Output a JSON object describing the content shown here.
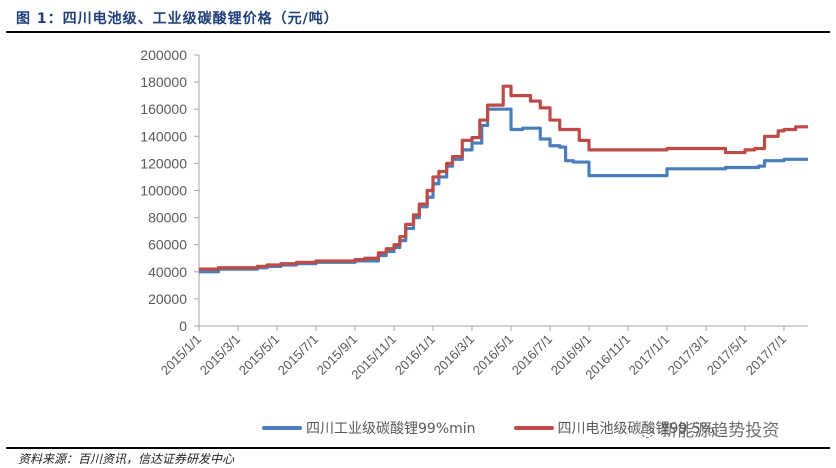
{
  "header": {
    "title": "图 1：四川电池级、工业级碳酸锂价格（元/吨）"
  },
  "footer": {
    "source": "资料来源：百川资讯，信达证券研发中心",
    "watermark": "新能源趋势投资"
  },
  "legend": {
    "items": [
      {
        "label": "四川工业级碳酸锂99%min",
        "color": "#4a7ebb"
      },
      {
        "label": "四川电池级碳酸锂99.5%",
        "color": "#be4b48"
      }
    ]
  },
  "chart_data": {
    "type": "line",
    "title": "四川电池级、工业级碳酸锂价格（元/吨）",
    "xlabel": "",
    "ylabel": "元/吨",
    "ylim": [
      0,
      200000
    ],
    "yticks": [
      0,
      20000,
      40000,
      60000,
      80000,
      100000,
      120000,
      140000,
      160000,
      180000,
      200000
    ],
    "xticks": [
      "2015/1/1",
      "2015/3/1",
      "2015/5/1",
      "2015/7/1",
      "2015/9/1",
      "2015/11/1",
      "2016/1/1",
      "2016/3/1",
      "2016/5/1",
      "2016/7/1",
      "2016/9/1",
      "2016/11/1",
      "2017/1/1",
      "2017/3/1",
      "2017/5/1",
      "2017/7/1"
    ],
    "grid": false,
    "legend_position": "bottom",
    "x_unit": "months since 2015/1/1",
    "series": [
      {
        "name": "四川工业级碳酸锂99%min",
        "color": "#4a7ebb",
        "step": true,
        "x": [
          0,
          1,
          3,
          3.5,
          4.2,
          5,
          6,
          7,
          8,
          8.5,
          9.2,
          9.6,
          10,
          10.3,
          10.6,
          11,
          11.3,
          11.7,
          12,
          12.3,
          12.7,
          13,
          13.5,
          14,
          14.5,
          14.8,
          15.2,
          16,
          16.6,
          17,
          17.5,
          18,
          18.5,
          18.8,
          19.2,
          20,
          22,
          24,
          26,
          27,
          28,
          28.7,
          29,
          30,
          31.2
        ],
        "values": [
          40000,
          42000,
          43000,
          44000,
          45000,
          46000,
          47000,
          47000,
          48000,
          48000,
          52000,
          55000,
          58000,
          63000,
          72000,
          80000,
          88000,
          95000,
          105000,
          110000,
          118000,
          123000,
          130000,
          135000,
          148000,
          160000,
          160000,
          145000,
          146000,
          146000,
          138000,
          133000,
          132000,
          122000,
          121000,
          111000,
          111000,
          116000,
          116000,
          117000,
          117000,
          118000,
          122000,
          123000,
          123000
        ]
      },
      {
        "name": "四川电池级碳酸锂99.5%",
        "color": "#be4b48",
        "step": true,
        "x": [
          0,
          1,
          3,
          3.5,
          4.2,
          5,
          6,
          7,
          8,
          8.5,
          9.2,
          9.6,
          10,
          10.3,
          10.6,
          11,
          11.3,
          11.7,
          12,
          12.3,
          12.7,
          13,
          13.5,
          14,
          14.4,
          14.8,
          15.4,
          15.6,
          16,
          16.5,
          17,
          17.5,
          18,
          18.5,
          19,
          19.5,
          20,
          22,
          24,
          26,
          27,
          28,
          28.5,
          29,
          29.7,
          30,
          30.6,
          31.2
        ],
        "values": [
          42000,
          43000,
          44000,
          45000,
          46000,
          47000,
          48000,
          48000,
          49000,
          50000,
          54000,
          57000,
          60000,
          66000,
          75000,
          82000,
          90000,
          100000,
          110000,
          114000,
          120000,
          125000,
          137000,
          139000,
          152000,
          163000,
          163000,
          177000,
          170000,
          170000,
          166000,
          161000,
          152000,
          145000,
          145000,
          137000,
          130000,
          130000,
          131000,
          131000,
          128000,
          130000,
          131000,
          140000,
          144000,
          145000,
          147000,
          147000
        ]
      }
    ]
  }
}
